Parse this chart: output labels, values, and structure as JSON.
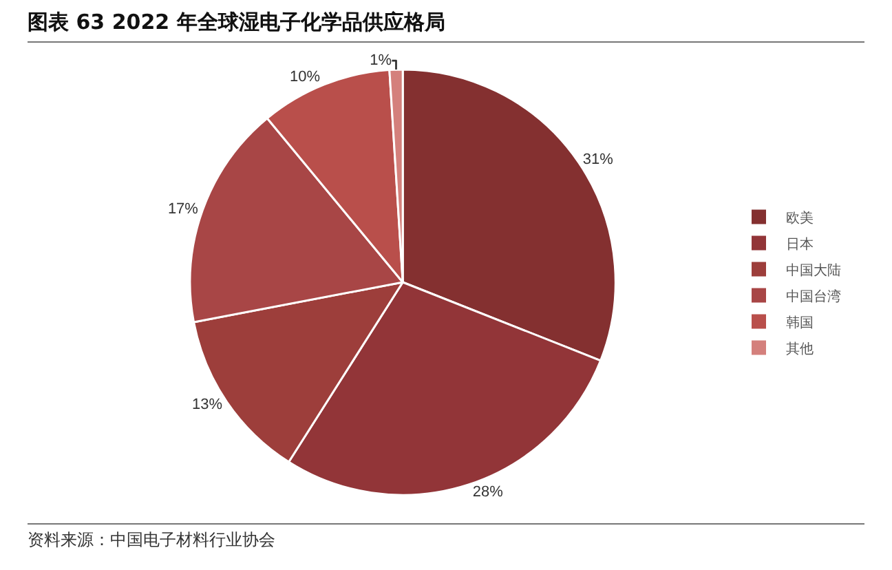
{
  "chart_data": {
    "type": "pie",
    "title": "图表 63 2022 年全球湿电子化学品供应格局",
    "categories": [
      "欧美",
      "日本",
      "中国大陆",
      "中国台湾",
      "韩国",
      "其他"
    ],
    "values": [
      31,
      28,
      13,
      17,
      10,
      1
    ],
    "value_labels": [
      "31%",
      "28%",
      "13%",
      "17%",
      "10%",
      "1%"
    ],
    "colors": [
      "#843030",
      "#923538",
      "#9d3e3b",
      "#a84646",
      "#b94f4b",
      "#d4807c"
    ],
    "legend": "right",
    "annotations": [
      "资料来源：中国电子材料行业协会"
    ]
  }
}
